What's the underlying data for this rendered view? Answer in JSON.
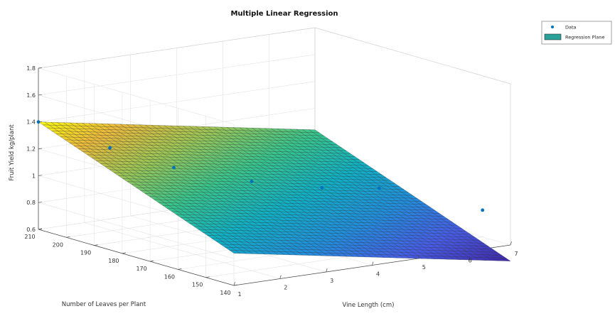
{
  "chart_data": {
    "type": "surface3d",
    "title": "Multiple Linear Regression",
    "xlabel": "Vine Length (cm)",
    "ylabel": "Number of Leaves per Plant",
    "zlabel": "Fruit Yield kg/plant",
    "xlim": [
      1,
      7
    ],
    "ylim": [
      140,
      210
    ],
    "zlim": [
      0.6,
      1.8
    ],
    "xticks": [
      "1",
      "2",
      "3",
      "4",
      "5",
      "6",
      "7"
    ],
    "yticks": [
      "140",
      "150",
      "160",
      "170",
      "180",
      "190",
      "200",
      "210"
    ],
    "zticks": [
      "0.6",
      "0.8",
      "1",
      "1.2",
      "1.4",
      "1.6",
      "1.8"
    ],
    "grid": true,
    "legend_position": "top-right",
    "series": [
      {
        "name": "Data",
        "kind": "scatter",
        "color": "#0072BD",
        "points": [
          {
            "x": 1.0,
            "y": 210,
            "z": 1.4
          },
          {
            "x": 1.4,
            "y": 191,
            "z": 1.3
          },
          {
            "x": 2.0,
            "y": 178,
            "z": 1.2
          },
          {
            "x": 2.9,
            "y": 165,
            "z": 1.13
          },
          {
            "x": 4.0,
            "y": 158,
            "z": 1.07
          },
          {
            "x": 5.0,
            "y": 154,
            "z": 1.04
          },
          {
            "x": 7.0,
            "y": 150,
            "z": 0.8
          }
        ]
      },
      {
        "name": "Regression Plane",
        "kind": "surface",
        "color": "#2aa198",
        "colormap": "parula",
        "plane": {
          "intercept": -0.22,
          "coef_x": -0.06,
          "coef_y": 0.008
        },
        "grid_x": 44,
        "grid_y": 44
      }
    ]
  }
}
